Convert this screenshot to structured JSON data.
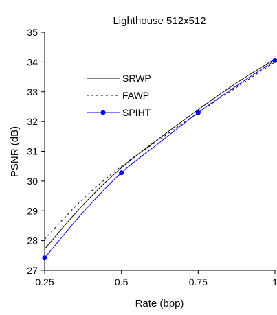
{
  "chart_data": {
    "type": "line",
    "title": "Lighthouse 512x512",
    "xlabel": "Rate (bpp)",
    "ylabel": "PSNR (dB)",
    "xlim": [
      0.25,
      1
    ],
    "ylim": [
      27,
      35
    ],
    "xticks": [
      0.25,
      0.5,
      0.75,
      1
    ],
    "xtick_labels": [
      "0.25",
      "0.5",
      "0.75",
      "1"
    ],
    "yticks": [
      27,
      28,
      29,
      30,
      31,
      32,
      33,
      34,
      35
    ],
    "ytick_labels": [
      "27",
      "28",
      "29",
      "30",
      "31",
      "32",
      "33",
      "34",
      "35"
    ],
    "grid": false,
    "legend_position": "top-left",
    "series": [
      {
        "name": "SRWP",
        "style": "solid",
        "color": "#000000",
        "markers": false,
        "x": [
          0.25,
          0.375,
          0.5,
          0.625,
          0.75,
          0.875,
          1.0
        ],
        "y": [
          27.72,
          29.2,
          30.45,
          31.45,
          32.4,
          33.3,
          34.1
        ]
      },
      {
        "name": "FAWP",
        "style": "dotted",
        "color": "#000000",
        "markers": false,
        "x": [
          0.25,
          0.375,
          0.5,
          0.625,
          0.75,
          0.875,
          1.0
        ],
        "y": [
          28.05,
          29.4,
          30.5,
          31.4,
          32.3,
          33.15,
          34.0
        ]
      },
      {
        "name": "SPIHT",
        "style": "solid",
        "color": "#0000ff",
        "markers": true,
        "marker_x": [
          0.25,
          0.5,
          0.75,
          1.0
        ],
        "x": [
          0.25,
          0.375,
          0.5,
          0.625,
          0.75,
          0.875,
          1.0
        ],
        "y": [
          27.42,
          28.95,
          30.28,
          31.3,
          32.3,
          33.2,
          34.05
        ]
      }
    ]
  }
}
